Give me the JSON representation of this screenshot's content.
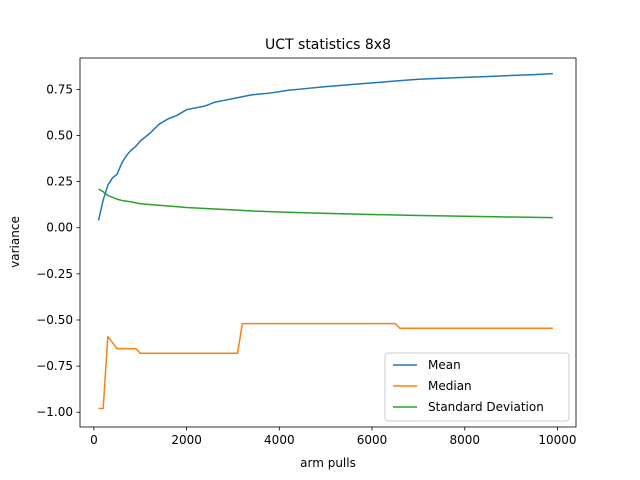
{
  "chart_data": {
    "type": "line",
    "title": "UCT statistics 8x8",
    "xlabel": "arm pulls",
    "ylabel": "variance",
    "xlim": [
      -300,
      10400
    ],
    "ylim": [
      -1.08,
      0.92
    ],
    "xticks": [
      0,
      2000,
      4000,
      6000,
      8000,
      10000
    ],
    "xtick_labels": [
      "0",
      "2000",
      "4000",
      "6000",
      "8000",
      "10000"
    ],
    "yticks": [
      -1.0,
      -0.75,
      -0.5,
      -0.25,
      0.0,
      0.25,
      0.5,
      0.75
    ],
    "ytick_labels": [
      "−1.00",
      "−0.75",
      "−0.50",
      "−0.25",
      "0.00",
      "0.25",
      "0.50",
      "0.75"
    ],
    "grid": false,
    "legend_position": "lower-right",
    "series": [
      {
        "name": "Mean",
        "color": "#1f77b4",
        "x": [
          100,
          200,
          300,
          400,
          500,
          600,
          700,
          800,
          900,
          1000,
          1200,
          1400,
          1600,
          1800,
          2000,
          2200,
          2400,
          2600,
          2800,
          3000,
          3400,
          3800,
          4200,
          4600,
          5000,
          5500,
          6000,
          6500,
          7000,
          7500,
          8000,
          8500,
          9000,
          9500,
          9900
        ],
        "y": [
          0.04,
          0.15,
          0.23,
          0.27,
          0.29,
          0.35,
          0.39,
          0.42,
          0.44,
          0.47,
          0.51,
          0.56,
          0.59,
          0.61,
          0.64,
          0.65,
          0.66,
          0.68,
          0.69,
          0.7,
          0.72,
          0.73,
          0.745,
          0.755,
          0.765,
          0.775,
          0.785,
          0.795,
          0.805,
          0.81,
          0.815,
          0.82,
          0.825,
          0.83,
          0.835
        ]
      },
      {
        "name": "Median",
        "color": "#ff7f0e",
        "x": [
          100,
          200,
          300,
          500,
          900,
          1000,
          3100,
          3200,
          6500,
          6600,
          9900
        ],
        "y": [
          -0.98,
          -0.98,
          -0.59,
          -0.655,
          -0.655,
          -0.68,
          -0.68,
          -0.52,
          -0.52,
          -0.545,
          -0.545
        ]
      },
      {
        "name": "Standard Deviation",
        "color": "#2ca02c",
        "x": [
          100,
          200,
          300,
          400,
          500,
          600,
          800,
          1000,
          1500,
          2000,
          2500,
          3000,
          3500,
          4000,
          5000,
          6000,
          7000,
          8000,
          9000,
          9900
        ],
        "y": [
          0.21,
          0.195,
          0.175,
          0.165,
          0.155,
          0.148,
          0.14,
          0.13,
          0.12,
          0.11,
          0.103,
          0.097,
          0.09,
          0.085,
          0.078,
          0.072,
          0.066,
          0.062,
          0.058,
          0.055
        ]
      }
    ]
  }
}
